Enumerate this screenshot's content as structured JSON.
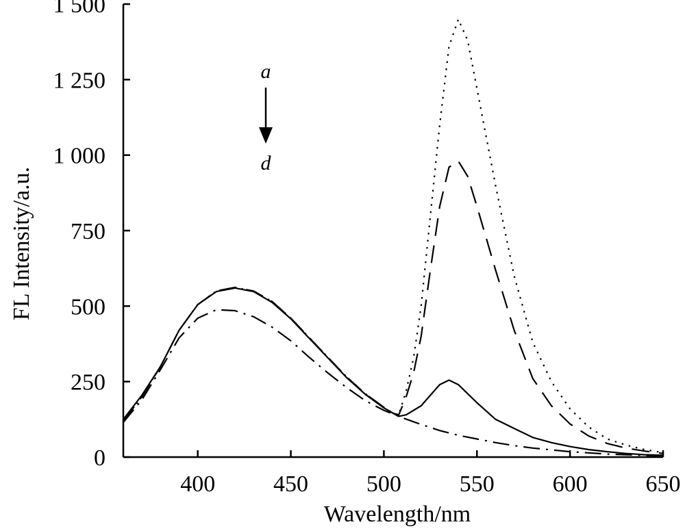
{
  "chart_data": {
    "type": "line",
    "title": "",
    "xlabel": "Wavelength/nm",
    "ylabel": "FL Intensity/a.u.",
    "xlim": [
      360,
      650
    ],
    "ylim": [
      0,
      1500
    ],
    "x_ticks": [
      400,
      450,
      500,
      550,
      600,
      650
    ],
    "x_tick_labels": [
      "400",
      "450",
      "500",
      "550",
      "600",
      "650"
    ],
    "y_ticks": [
      0,
      250,
      500,
      750,
      1000,
      1250,
      1500
    ],
    "y_tick_labels": [
      "0",
      "250",
      "500",
      "750",
      "1 000",
      "1 250",
      "1 500"
    ],
    "grid": false,
    "legend": "none",
    "annotations": {
      "start_label": "a",
      "end_label": "d"
    },
    "series": [
      {
        "style": "dotted",
        "x": [
          360,
          370,
          380,
          390,
          400,
          410,
          420,
          430,
          440,
          450,
          460,
          470,
          480,
          490,
          500,
          505,
          508,
          512,
          516,
          520,
          525,
          530,
          535,
          540,
          545,
          550,
          560,
          570,
          580,
          590,
          600,
          610,
          620,
          630,
          640,
          650
        ],
        "y": [
          120,
          200,
          300,
          420,
          505,
          550,
          562,
          550,
          515,
          460,
          395,
          330,
          265,
          210,
          165,
          145,
          140,
          220,
          330,
          500,
          800,
          1100,
          1360,
          1450,
          1380,
          1220,
          900,
          600,
          380,
          250,
          160,
          100,
          60,
          40,
          25,
          15
        ]
      },
      {
        "style": "dashed",
        "x": [
          360,
          370,
          380,
          390,
          400,
          410,
          420,
          430,
          440,
          450,
          460,
          470,
          480,
          490,
          500,
          505,
          508,
          512,
          516,
          520,
          525,
          530,
          535,
          540,
          545,
          550,
          560,
          570,
          580,
          590,
          600,
          610,
          620,
          630,
          640,
          650
        ],
        "y": [
          120,
          200,
          300,
          420,
          505,
          550,
          562,
          550,
          515,
          460,
          395,
          330,
          265,
          210,
          165,
          145,
          140,
          200,
          280,
          400,
          620,
          830,
          960,
          980,
          930,
          830,
          620,
          420,
          260,
          170,
          110,
          70,
          45,
          30,
          20,
          12
        ]
      },
      {
        "style": "solid",
        "x": [
          360,
          370,
          380,
          390,
          400,
          410,
          420,
          430,
          440,
          450,
          460,
          470,
          480,
          490,
          500,
          505,
          508,
          512,
          520,
          530,
          535,
          540,
          550,
          560,
          570,
          580,
          590,
          600,
          610,
          620,
          630,
          640,
          650
        ],
        "y": [
          125,
          205,
          300,
          420,
          505,
          548,
          560,
          548,
          512,
          458,
          393,
          328,
          263,
          208,
          163,
          145,
          135,
          140,
          170,
          240,
          255,
          240,
          180,
          125,
          95,
          65,
          48,
          35,
          25,
          18,
          12,
          8,
          6
        ]
      },
      {
        "style": "dash-dot",
        "x": [
          360,
          370,
          380,
          390,
          400,
          410,
          420,
          430,
          440,
          450,
          460,
          470,
          480,
          490,
          500,
          510,
          520,
          530,
          540,
          550,
          560,
          570,
          580,
          590,
          600,
          610,
          620,
          630,
          640,
          650
        ],
        "y": [
          115,
          190,
          290,
          395,
          460,
          488,
          485,
          465,
          430,
          385,
          330,
          278,
          230,
          187,
          155,
          130,
          108,
          88,
          72,
          60,
          48,
          38,
          30,
          24,
          18,
          14,
          10,
          8,
          6,
          4
        ]
      }
    ]
  }
}
